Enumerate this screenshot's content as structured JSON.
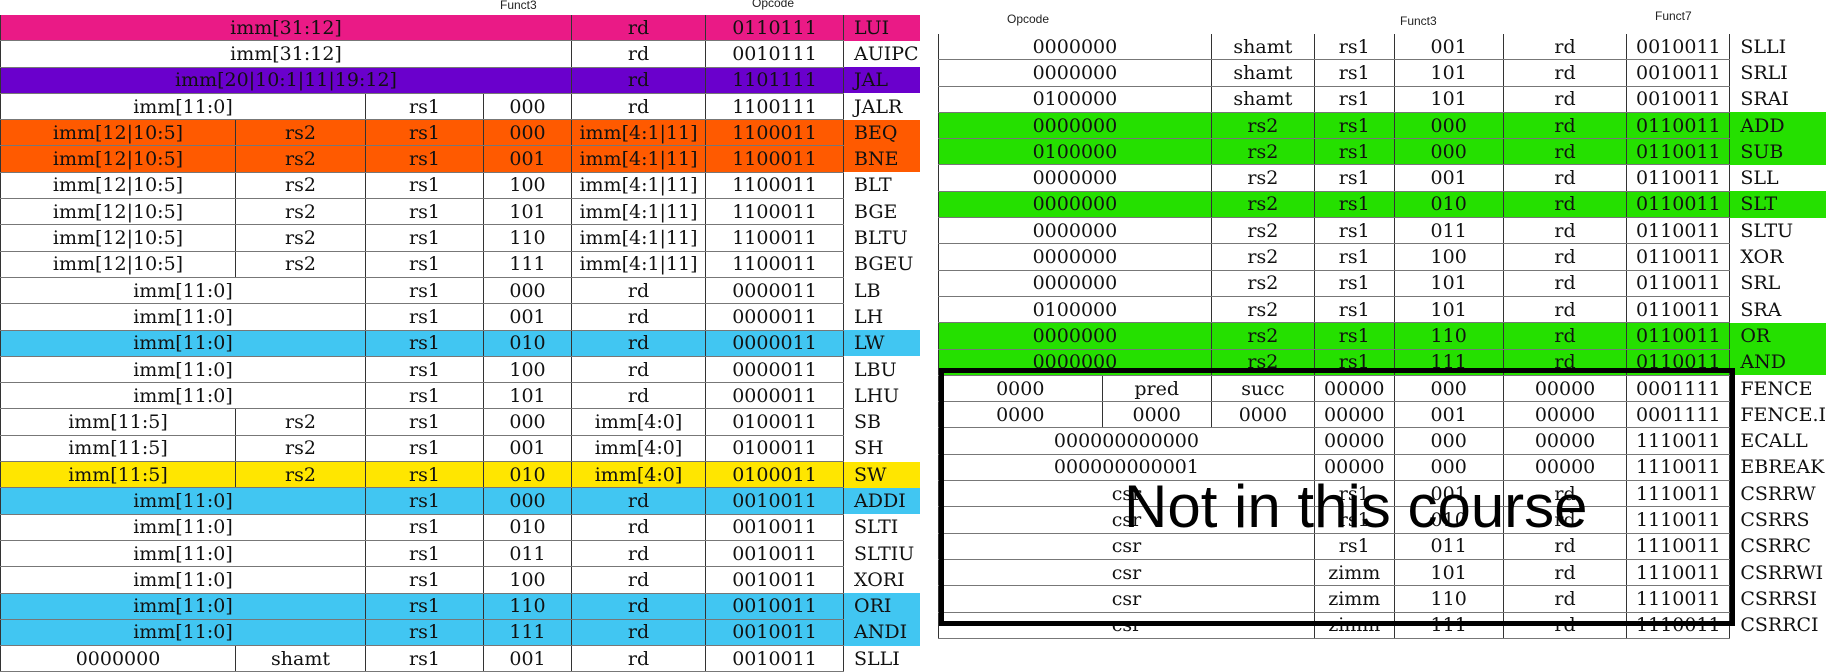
{
  "captions": {
    "left_funct3": "Funct3",
    "left_opcode": "Opcode",
    "right_opcode": "Opcode",
    "right_funct3": "Funct3",
    "right_funct7": "Funct7"
  },
  "overlay_text": "Not in this course",
  "highlight_colors": {
    "pink": "#ea1a86",
    "purple": "#6a00cc",
    "orange": "#ff5a00",
    "cyan": "#41c6f2",
    "yellow": "#ffe600",
    "green": "#25e000",
    "grey": "#ececec"
  },
  "left_table": [
    {
      "hl": "pink",
      "cells": [
        {
          "t": "imm[31:12]",
          "span": 4
        },
        {
          "t": "rd"
        },
        {
          "t": "0110111"
        }
      ],
      "mnemonic": "LUI"
    },
    {
      "hl": "",
      "cells": [
        {
          "t": "imm[31:12]",
          "span": 4
        },
        {
          "t": "rd"
        },
        {
          "t": "0010111"
        }
      ],
      "mnemonic": "AUIPC"
    },
    {
      "hl": "purple",
      "cells": [
        {
          "t": "imm[20|10:1|11|19:12]",
          "span": 4
        },
        {
          "t": "rd"
        },
        {
          "t": "1101111"
        }
      ],
      "mnemonic": "JAL"
    },
    {
      "hl": "",
      "cells": [
        {
          "t": "imm[11:0]",
          "span": 2
        },
        {
          "t": "rs1"
        },
        {
          "t": "000"
        },
        {
          "t": "rd"
        },
        {
          "t": "1100111"
        }
      ],
      "mnemonic": "JALR"
    },
    {
      "hl": "orange",
      "cells": [
        {
          "t": "imm[12|10:5]"
        },
        {
          "t": "rs2"
        },
        {
          "t": "rs1"
        },
        {
          "t": "000"
        },
        {
          "t": "imm[4:1|11]"
        },
        {
          "t": "1100011"
        }
      ],
      "mnemonic": "BEQ"
    },
    {
      "hl": "orange",
      "cells": [
        {
          "t": "imm[12|10:5]"
        },
        {
          "t": "rs2"
        },
        {
          "t": "rs1"
        },
        {
          "t": "001"
        },
        {
          "t": "imm[4:1|11]"
        },
        {
          "t": "1100011"
        }
      ],
      "mnemonic": "BNE"
    },
    {
      "hl": "",
      "cells": [
        {
          "t": "imm[12|10:5]"
        },
        {
          "t": "rs2"
        },
        {
          "t": "rs1"
        },
        {
          "t": "100"
        },
        {
          "t": "imm[4:1|11]"
        },
        {
          "t": "1100011"
        }
      ],
      "mnemonic": "BLT"
    },
    {
      "hl": "",
      "cells": [
        {
          "t": "imm[12|10:5]"
        },
        {
          "t": "rs2"
        },
        {
          "t": "rs1"
        },
        {
          "t": "101"
        },
        {
          "t": "imm[4:1|11]"
        },
        {
          "t": "1100011"
        }
      ],
      "mnemonic": "BGE"
    },
    {
      "hl": "",
      "cells": [
        {
          "t": "imm[12|10:5]"
        },
        {
          "t": "rs2"
        },
        {
          "t": "rs1"
        },
        {
          "t": "110"
        },
        {
          "t": "imm[4:1|11]"
        },
        {
          "t": "1100011"
        }
      ],
      "mnemonic": "BLTU"
    },
    {
      "hl": "",
      "cells": [
        {
          "t": "imm[12|10:5]"
        },
        {
          "t": "rs2"
        },
        {
          "t": "rs1"
        },
        {
          "t": "111"
        },
        {
          "t": "imm[4:1|11]"
        },
        {
          "t": "1100011"
        }
      ],
      "mnemonic": "BGEU"
    },
    {
      "hl": "",
      "cells": [
        {
          "t": "imm[11:0]",
          "span": 2
        },
        {
          "t": "rs1"
        },
        {
          "t": "000"
        },
        {
          "t": "rd"
        },
        {
          "t": "0000011"
        }
      ],
      "mnemonic": "LB"
    },
    {
      "hl": "",
      "cells": [
        {
          "t": "imm[11:0]",
          "span": 2
        },
        {
          "t": "rs1"
        },
        {
          "t": "001"
        },
        {
          "t": "rd"
        },
        {
          "t": "0000011"
        }
      ],
      "mnemonic": "LH"
    },
    {
      "hl": "cyan",
      "cells": [
        {
          "t": "imm[11:0]",
          "span": 2
        },
        {
          "t": "rs1"
        },
        {
          "t": "010"
        },
        {
          "t": "rd"
        },
        {
          "t": "0000011"
        }
      ],
      "mnemonic": "LW"
    },
    {
      "hl": "",
      "cells": [
        {
          "t": "imm[11:0]",
          "span": 2
        },
        {
          "t": "rs1"
        },
        {
          "t": "100"
        },
        {
          "t": "rd"
        },
        {
          "t": "0000011"
        }
      ],
      "mnemonic": "LBU"
    },
    {
      "hl": "",
      "cells": [
        {
          "t": "imm[11:0]",
          "span": 2
        },
        {
          "t": "rs1"
        },
        {
          "t": "101"
        },
        {
          "t": "rd"
        },
        {
          "t": "0000011"
        }
      ],
      "mnemonic": "LHU"
    },
    {
      "hl": "",
      "cells": [
        {
          "t": "imm[11:5]"
        },
        {
          "t": "rs2"
        },
        {
          "t": "rs1"
        },
        {
          "t": "000"
        },
        {
          "t": "imm[4:0]"
        },
        {
          "t": "0100011"
        }
      ],
      "mnemonic": "SB"
    },
    {
      "hl": "",
      "cells": [
        {
          "t": "imm[11:5]"
        },
        {
          "t": "rs2"
        },
        {
          "t": "rs1"
        },
        {
          "t": "001"
        },
        {
          "t": "imm[4:0]"
        },
        {
          "t": "0100011"
        }
      ],
      "mnemonic": "SH"
    },
    {
      "hl": "yellow",
      "cells": [
        {
          "t": "imm[11:5]"
        },
        {
          "t": "rs2"
        },
        {
          "t": "rs1"
        },
        {
          "t": "010"
        },
        {
          "t": "imm[4:0]"
        },
        {
          "t": "0100011"
        }
      ],
      "mnemonic": "SW"
    },
    {
      "hl": "cyan",
      "cells": [
        {
          "t": "imm[11:0]",
          "span": 2
        },
        {
          "t": "rs1"
        },
        {
          "t": "000"
        },
        {
          "t": "rd"
        },
        {
          "t": "0010011"
        }
      ],
      "mnemonic": "ADDI"
    },
    {
      "hl": "",
      "cells": [
        {
          "t": "imm[11:0]",
          "span": 2
        },
        {
          "t": "rs1"
        },
        {
          "t": "010"
        },
        {
          "t": "rd"
        },
        {
          "t": "0010011"
        }
      ],
      "mnemonic": "SLTI"
    },
    {
      "hl": "",
      "cells": [
        {
          "t": "imm[11:0]",
          "span": 2
        },
        {
          "t": "rs1"
        },
        {
          "t": "011"
        },
        {
          "t": "rd"
        },
        {
          "t": "0010011"
        }
      ],
      "mnemonic": "SLTIU"
    },
    {
      "hl": "",
      "cells": [
        {
          "t": "imm[11:0]",
          "span": 2
        },
        {
          "t": "rs1"
        },
        {
          "t": "100"
        },
        {
          "t": "rd"
        },
        {
          "t": "0010011"
        }
      ],
      "mnemonic": "XORI"
    },
    {
      "hl": "cyan",
      "cells": [
        {
          "t": "imm[11:0]",
          "span": 2
        },
        {
          "t": "rs1"
        },
        {
          "t": "110"
        },
        {
          "t": "rd"
        },
        {
          "t": "0010011"
        }
      ],
      "mnemonic": "ORI"
    },
    {
      "hl": "cyan",
      "cells": [
        {
          "t": "imm[11:0]",
          "span": 2
        },
        {
          "t": "rs1"
        },
        {
          "t": "111"
        },
        {
          "t": "rd"
        },
        {
          "t": "0010011"
        }
      ],
      "mnemonic": "ANDI"
    },
    {
      "hl": "",
      "cells": [
        {
          "t": "0000000"
        },
        {
          "t": "shamt"
        },
        {
          "t": "rs1"
        },
        {
          "t": "001"
        },
        {
          "t": "rd"
        },
        {
          "t": "0010011"
        }
      ],
      "mnemonic": "SLLI"
    }
  ],
  "right_table": [
    {
      "hl": "",
      "cells": [
        {
          "t": "0000000",
          "span": 2
        },
        {
          "t": "shamt"
        },
        {
          "t": "rs1"
        },
        {
          "t": "001"
        },
        {
          "t": "rd"
        },
        {
          "t": "0010011"
        }
      ],
      "mnemonic": "SLLI"
    },
    {
      "hl": "",
      "cells": [
        {
          "t": "0000000",
          "span": 2
        },
        {
          "t": "shamt"
        },
        {
          "t": "rs1"
        },
        {
          "t": "101"
        },
        {
          "t": "rd"
        },
        {
          "t": "0010011"
        }
      ],
      "mnemonic": "SRLI"
    },
    {
      "hl": "",
      "cells": [
        {
          "t": "0100000",
          "span": 2
        },
        {
          "t": "shamt"
        },
        {
          "t": "rs1"
        },
        {
          "t": "101"
        },
        {
          "t": "rd"
        },
        {
          "t": "0010011"
        }
      ],
      "mnemonic": "SRAI"
    },
    {
      "hl": "green",
      "cells": [
        {
          "t": "0000000",
          "span": 2
        },
        {
          "t": "rs2"
        },
        {
          "t": "rs1"
        },
        {
          "t": "000"
        },
        {
          "t": "rd"
        },
        {
          "t": "0110011"
        }
      ],
      "mnemonic": "ADD"
    },
    {
      "hl": "green",
      "cells": [
        {
          "t": "0100000",
          "span": 2
        },
        {
          "t": "rs2"
        },
        {
          "t": "rs1"
        },
        {
          "t": "000"
        },
        {
          "t": "rd"
        },
        {
          "t": "0110011"
        }
      ],
      "mnemonic": "SUB"
    },
    {
      "hl": "",
      "cells": [
        {
          "t": "0000000",
          "span": 2
        },
        {
          "t": "rs2"
        },
        {
          "t": "rs1"
        },
        {
          "t": "001"
        },
        {
          "t": "rd"
        },
        {
          "t": "0110011"
        }
      ],
      "mnemonic": "SLL"
    },
    {
      "hl": "green",
      "cells": [
        {
          "t": "0000000",
          "span": 2
        },
        {
          "t": "rs2"
        },
        {
          "t": "rs1"
        },
        {
          "t": "010"
        },
        {
          "t": "rd"
        },
        {
          "t": "0110011"
        }
      ],
      "mnemonic": "SLT"
    },
    {
      "hl": "",
      "cells": [
        {
          "t": "0000000",
          "span": 2
        },
        {
          "t": "rs2"
        },
        {
          "t": "rs1"
        },
        {
          "t": "011"
        },
        {
          "t": "rd"
        },
        {
          "t": "0110011"
        }
      ],
      "mnemonic": "SLTU"
    },
    {
      "hl": "",
      "cells": [
        {
          "t": "0000000",
          "span": 2
        },
        {
          "t": "rs2"
        },
        {
          "t": "rs1"
        },
        {
          "t": "100"
        },
        {
          "t": "rd"
        },
        {
          "t": "0110011"
        }
      ],
      "mnemonic": "XOR"
    },
    {
      "hl": "",
      "cells": [
        {
          "t": "0000000",
          "span": 2
        },
        {
          "t": "rs2"
        },
        {
          "t": "rs1"
        },
        {
          "t": "101"
        },
        {
          "t": "rd"
        },
        {
          "t": "0110011"
        }
      ],
      "mnemonic": "SRL"
    },
    {
      "hl": "",
      "cells": [
        {
          "t": "0100000",
          "span": 2
        },
        {
          "t": "rs2"
        },
        {
          "t": "rs1"
        },
        {
          "t": "101"
        },
        {
          "t": "rd"
        },
        {
          "t": "0110011"
        }
      ],
      "mnemonic": "SRA"
    },
    {
      "hl": "green",
      "cells": [
        {
          "t": "0000000",
          "span": 2
        },
        {
          "t": "rs2"
        },
        {
          "t": "rs1"
        },
        {
          "t": "110"
        },
        {
          "t": "rd"
        },
        {
          "t": "0110011"
        }
      ],
      "mnemonic": "OR"
    },
    {
      "hl": "green",
      "cells": [
        {
          "t": "0000000",
          "span": 2
        },
        {
          "t": "rs2"
        },
        {
          "t": "rs1"
        },
        {
          "t": "111"
        },
        {
          "t": "rd"
        },
        {
          "t": "0110011"
        }
      ],
      "mnemonic": "AND"
    },
    {
      "hl": "grey",
      "cells": [
        {
          "t": "0000"
        },
        {
          "t": "pred"
        },
        {
          "t": "succ"
        },
        {
          "t": "00000"
        },
        {
          "t": "000"
        },
        {
          "t": "00000"
        },
        {
          "t": "0001111"
        }
      ],
      "mnemonic": "FENCE"
    },
    {
      "hl": "grey",
      "cells": [
        {
          "t": "0000"
        },
        {
          "t": "0000"
        },
        {
          "t": "0000"
        },
        {
          "t": "00000"
        },
        {
          "t": "001"
        },
        {
          "t": "00000"
        },
        {
          "t": "0001111"
        }
      ],
      "mnemonic": "FENCE.I"
    },
    {
      "hl": "grey",
      "cells": [
        {
          "t": "000000000000",
          "span": 3
        },
        {
          "t": "00000"
        },
        {
          "t": "000"
        },
        {
          "t": "00000"
        },
        {
          "t": "1110011"
        }
      ],
      "mnemonic": "ECALL"
    },
    {
      "hl": "grey",
      "cells": [
        {
          "t": "000000000001",
          "span": 3
        },
        {
          "t": "00000"
        },
        {
          "t": "000"
        },
        {
          "t": "00000"
        },
        {
          "t": "1110011"
        }
      ],
      "mnemonic": "EBREAK"
    },
    {
      "hl": "grey",
      "cells": [
        {
          "t": "csr",
          "span": 3
        },
        {
          "t": "rs1"
        },
        {
          "t": "001"
        },
        {
          "t": "rd"
        },
        {
          "t": "1110011"
        }
      ],
      "mnemonic": "CSRRW"
    },
    {
      "hl": "grey",
      "cells": [
        {
          "t": "csr",
          "span": 3
        },
        {
          "t": "rs1"
        },
        {
          "t": "010"
        },
        {
          "t": "rd"
        },
        {
          "t": "1110011"
        }
      ],
      "mnemonic": "CSRRS"
    },
    {
      "hl": "grey",
      "cells": [
        {
          "t": "csr",
          "span": 3
        },
        {
          "t": "rs1"
        },
        {
          "t": "011"
        },
        {
          "t": "rd"
        },
        {
          "t": "1110011"
        }
      ],
      "mnemonic": "CSRRC"
    },
    {
      "hl": "grey",
      "cells": [
        {
          "t": "csr",
          "span": 3
        },
        {
          "t": "zimm"
        },
        {
          "t": "101"
        },
        {
          "t": "rd"
        },
        {
          "t": "1110011"
        }
      ],
      "mnemonic": "CSRRWI"
    },
    {
      "hl": "grey",
      "cells": [
        {
          "t": "csr",
          "span": 3
        },
        {
          "t": "zimm"
        },
        {
          "t": "110"
        },
        {
          "t": "rd"
        },
        {
          "t": "1110011"
        }
      ],
      "mnemonic": "CSRRSI"
    },
    {
      "hl": "grey",
      "cells": [
        {
          "t": "csr",
          "span": 3
        },
        {
          "t": "zimm"
        },
        {
          "t": "111"
        },
        {
          "t": "rd"
        },
        {
          "t": "1110011"
        }
      ],
      "mnemonic": "CSRRCI"
    }
  ]
}
